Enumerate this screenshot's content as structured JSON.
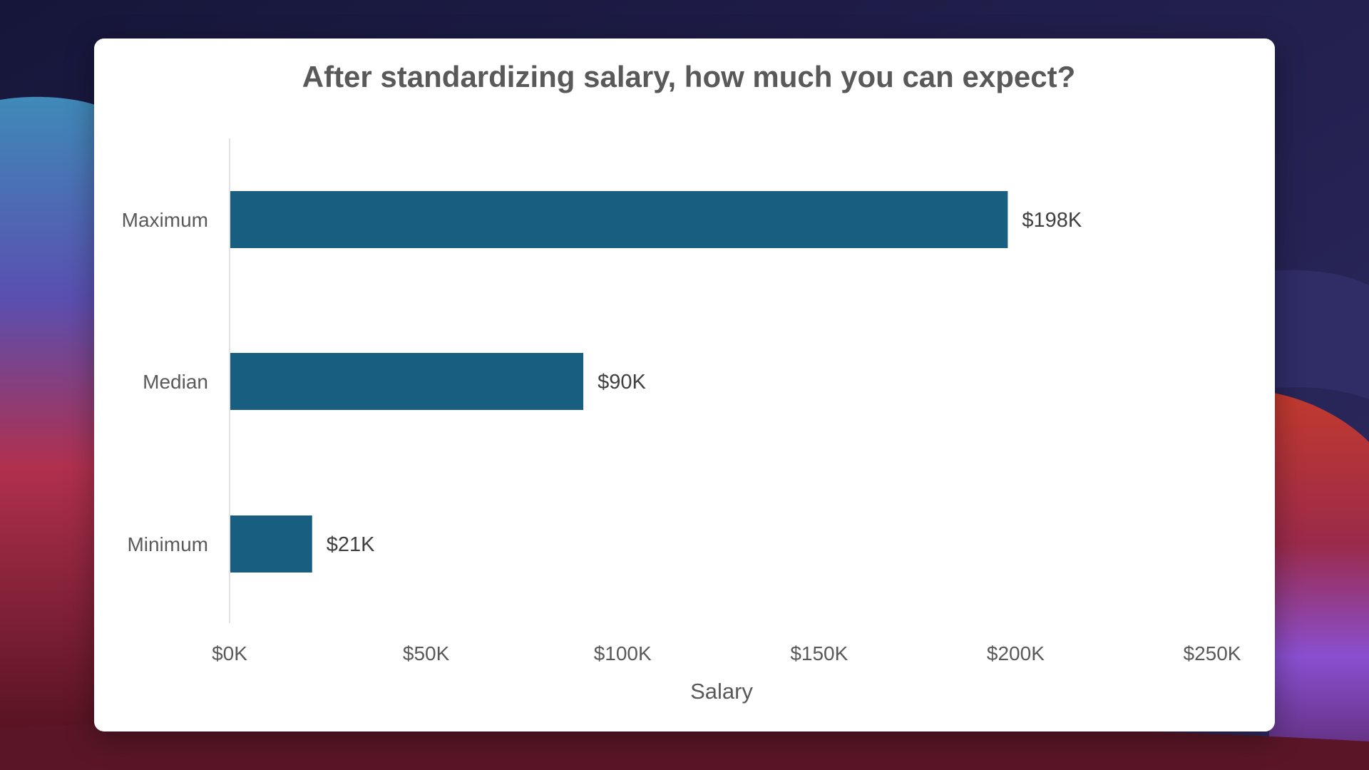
{
  "chart_data": {
    "type": "bar",
    "orientation": "horizontal",
    "title": "After standardizing salary, how much you can expect?",
    "xlabel": "Salary",
    "ylabel": "",
    "categories": [
      "Maximum",
      "Median",
      "Minimum"
    ],
    "values": [
      198,
      90,
      21
    ],
    "value_unit": "thousand USD",
    "data_labels": [
      "$198K",
      "$90K",
      "$21K"
    ],
    "xlim": [
      0,
      250
    ],
    "x_ticks": [
      0,
      50,
      100,
      150,
      200,
      250
    ],
    "x_tick_labels": [
      "$0K",
      "$50K",
      "$100K",
      "$150K",
      "$200K",
      "$250K"
    ],
    "bar_color": "#175e80",
    "grid": false,
    "legend": "none"
  },
  "colors": {
    "card_background": "#ffffff",
    "text": "#595959",
    "axis_line": "#d9d9d9"
  }
}
